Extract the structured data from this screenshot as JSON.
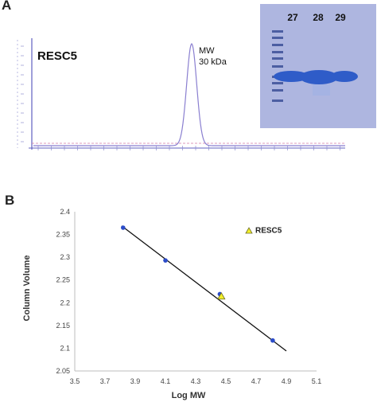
{
  "panel_labels": {
    "a": "A",
    "b": "B"
  },
  "chart_data": [
    {
      "type": "line",
      "protein_label": "RESC5",
      "annotation": [
        "MW",
        "30 kDa"
      ],
      "peak_color": "#8a7fd0",
      "inset_gel": {
        "lane_labels": [
          "27",
          "28",
          "29"
        ],
        "background": "#aeb6e0",
        "band_color": "#2f5cc8"
      }
    },
    {
      "type": "scatter",
      "title": "",
      "xlabel": "Log MW",
      "ylabel": "Column Volume",
      "xlim": [
        3.5,
        5.1
      ],
      "ylim": [
        2.05,
        2.4
      ],
      "xticks": [
        "3.5",
        "3.7",
        "3.9",
        "4.1",
        "4.3",
        "4.5",
        "4.7",
        "4.9",
        "5.1"
      ],
      "yticks": [
        "2.05",
        "2.1",
        "2.15",
        "2.2",
        "2.25",
        "2.3",
        "2.35",
        "2.4"
      ],
      "standards": {
        "x": [
          3.82,
          4.1,
          4.46,
          4.81
        ],
        "y": [
          2.365,
          2.293,
          2.219,
          2.117
        ],
        "color": "#2b4cc9"
      },
      "sample": {
        "name": "RESC5",
        "x": 4.47,
        "y": 2.214,
        "color": "#f2ef2a"
      },
      "fit_line": {
        "x": [
          3.81,
          4.9
        ],
        "y": [
          2.369,
          2.094
        ],
        "color": "#111111"
      },
      "grid": false
    }
  ]
}
